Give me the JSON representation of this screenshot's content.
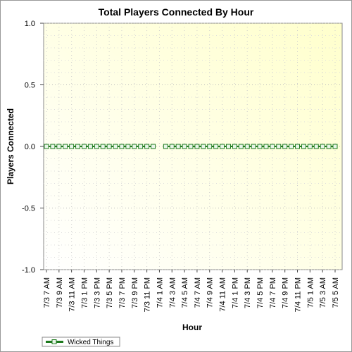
{
  "chart_data": {
    "type": "line",
    "title": "Total Players Connected By Hour",
    "x_label": "Hour",
    "y_label": "Players Connected",
    "categories": [
      "7/3 7 AM",
      null,
      "7/3 9 AM",
      null,
      "7/3 11 AM",
      null,
      "7/3 1 PM",
      null,
      "7/3 3 PM",
      null,
      "7/3 5 PM",
      null,
      "7/3 7 PM",
      null,
      "7/3 9 PM",
      null,
      "7/3 11 PM",
      null,
      "7/4 1 AM",
      null,
      "7/4 3 AM",
      null,
      "7/4 5 AM",
      null,
      "7/4 7 AM",
      null,
      "7/4 9 AM",
      null,
      "7/4 11 AM",
      null,
      "7/4 1 PM",
      null,
      "7/4 3 PM",
      null,
      "7/4 5 PM",
      null,
      "7/4 7 PM",
      null,
      "7/4 9 PM",
      null,
      "7/4 11 PM",
      null,
      "7/5 1 AM",
      null,
      "7/5 3 AM",
      null,
      "7/5 5 AM"
    ],
    "series": [
      {
        "name": "Wicked Things",
        "color": "#1e7a1e",
        "values": [
          0,
          0,
          0,
          0,
          0,
          0,
          0,
          0,
          0,
          0,
          0,
          0,
          0,
          0,
          0,
          0,
          0,
          0,
          null,
          0,
          0,
          0,
          0,
          0,
          0,
          0,
          0,
          0,
          0,
          0,
          0,
          0,
          0,
          0,
          0,
          0,
          0,
          0,
          0,
          0,
          0,
          0,
          0,
          0,
          0,
          0,
          0
        ]
      }
    ],
    "ylim": [
      -1,
      1
    ],
    "yticks": [
      {
        "value": -1,
        "label": "-1.0"
      },
      {
        "value": -0.5,
        "label": "-0.5"
      },
      {
        "value": 0,
        "label": "0.0"
      },
      {
        "value": 0.5,
        "label": "0.5"
      },
      {
        "value": 1,
        "label": "1.0"
      }
    ],
    "grid": true,
    "legend": "bottom-left"
  }
}
